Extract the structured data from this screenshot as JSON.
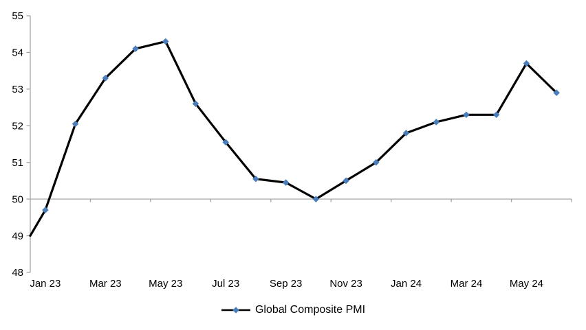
{
  "chart_data": {
    "type": "line",
    "title": "",
    "categories": [
      "Jan 23",
      "Feb 23",
      "Mar 23",
      "Apr 23",
      "May 23",
      "Jun 23",
      "Jul 23",
      "Aug 23",
      "Sep 23",
      "Oct 23",
      "Nov 23",
      "Dec 23",
      "Jan 24",
      "Feb 24",
      "Mar 24",
      "Apr 24",
      "May 24",
      "Jun 24"
    ],
    "series": [
      {
        "name": "Global Composite PMI",
        "values": [
          49.7,
          52.05,
          53.3,
          54.1,
          54.3,
          52.6,
          51.55,
          50.55,
          50.45,
          50.0,
          50.5,
          51.0,
          51.8,
          52.1,
          52.3,
          52.3,
          53.7,
          52.9
        ],
        "line_color": "#000000",
        "marker_shape": "diamond",
        "marker_color": "#4A7EBB"
      }
    ],
    "line_enters_left_edge_at_value": 49.0,
    "x_tick_labels": [
      "Jan 23",
      "Mar 23",
      "May 23",
      "Jul 23",
      "Sep 23",
      "Nov 23",
      "Jan 24",
      "Mar 24",
      "May 24"
    ],
    "x_label_every_n_categories": 2,
    "y_ticks": [
      48,
      49,
      50,
      51,
      52,
      53,
      54,
      55
    ],
    "ylim": [
      48,
      55
    ],
    "x_axis_cross_value": 50,
    "grid": "off",
    "axis_color": "#A6A6A6",
    "legend_position": "bottom-center",
    "legend_label": "Global Composite PMI"
  }
}
